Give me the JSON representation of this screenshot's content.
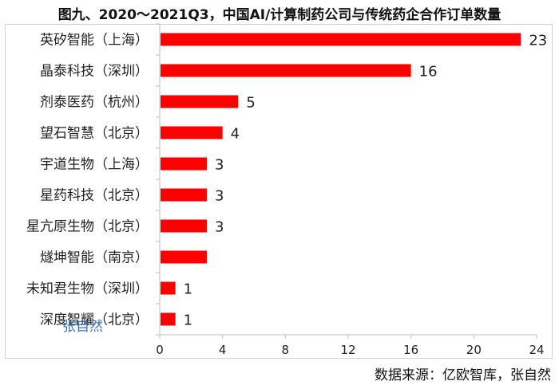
{
  "title": "图九、2020～2021Q3，中国AI/计算制药公司与传统药企合作订单数量",
  "source": "数据来源：亿欧智库，张自然",
  "watermark": "张自然",
  "colors": {
    "bar": "#ff0000",
    "axis": "#bfbfbf",
    "text": "#222222"
  },
  "chart_data": {
    "type": "bar",
    "orientation": "horizontal",
    "categories": [
      "英矽智能（上海）",
      "晶泰科技（深圳）",
      "剂泰医药（杭州）",
      "望石智慧（北京）",
      "宇道生物（上海）",
      "星药科技（北京）",
      "星亢原生物（北京）",
      "燧坤智能（南京）",
      "未知君生物（深圳）",
      "深度智耀（北京）"
    ],
    "values": [
      23,
      16,
      5,
      4,
      3,
      3,
      3,
      3,
      1,
      1
    ],
    "data_labels": [
      "23",
      "16",
      "5",
      "4",
      "3",
      "3",
      "3",
      "",
      "1",
      "1"
    ],
    "xlim": [
      0,
      24
    ],
    "xticks": [
      0,
      4,
      8,
      12,
      16,
      20,
      24
    ],
    "grid": false,
    "legend": "none"
  }
}
